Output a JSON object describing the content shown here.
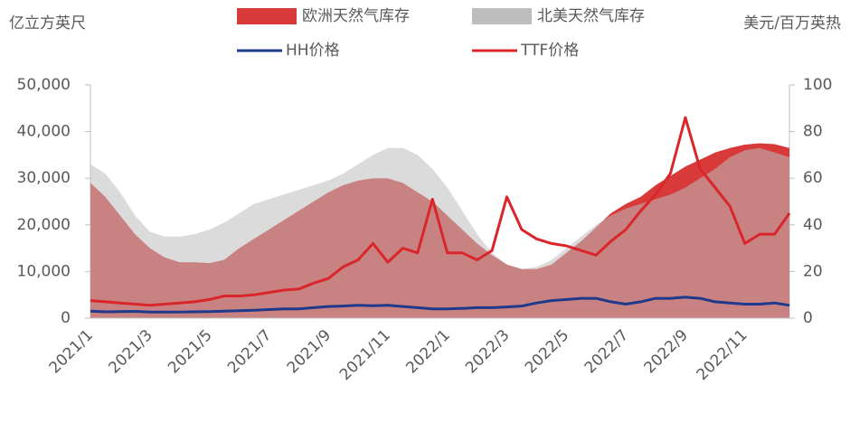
{
  "chart_data": {
    "type": "area-line",
    "y_label": "亿立方英尺",
    "y2_label": "美元/百万英热",
    "categories": [
      "2021/1",
      null,
      null,
      null,
      "2021/3",
      null,
      null,
      null,
      "2021/5",
      null,
      null,
      null,
      "2021/7",
      null,
      null,
      null,
      "2021/9",
      null,
      null,
      null,
      "2021/11",
      null,
      null,
      null,
      "2022/1",
      null,
      null,
      null,
      "2022/3",
      null,
      null,
      null,
      "2022/5",
      null,
      null,
      null,
      "2022/7",
      null,
      null,
      null,
      "2022/9",
      null,
      null,
      null,
      "2022/11",
      null,
      null,
      null
    ],
    "ylim": [
      0,
      50000
    ],
    "yticks": [
      0,
      {
        "value": 10000,
        "label": "10,000"
      },
      {
        "value": 20000,
        "label": "20,000"
      },
      {
        "value": 30000,
        "label": "30,000"
      },
      {
        "value": 40000,
        "label": "40,000"
      },
      {
        "value": 50000,
        "label": "50,000"
      }
    ],
    "y2lim": [
      0,
      100
    ],
    "y2ticks": [
      0,
      20,
      40,
      60,
      80,
      100
    ],
    "series": [
      {
        "name": "欧洲天然气库存",
        "type": "area",
        "color": "#d83a3a",
        "values": [
          29000,
          26000,
          22000,
          18000,
          15000,
          13000,
          12000,
          12000,
          11800,
          12500,
          15000,
          17000,
          19000,
          21000,
          23000,
          25000,
          27000,
          28500,
          29500,
          30000,
          30000,
          29000,
          27000,
          25000,
          22000,
          19000,
          16000,
          13500,
          11500,
          10500,
          10500,
          11500,
          14000,
          16500,
          19500,
          22500,
          24500,
          26000,
          28500,
          30500,
          32500,
          34000,
          35500,
          36500,
          37200,
          37500,
          37300,
          36500
        ]
      },
      {
        "name": "北美天然气库存",
        "type": "area",
        "color": "#bdbdbd",
        "values": [
          33000,
          31000,
          27000,
          22000,
          18500,
          17500,
          17500,
          18000,
          19000,
          20500,
          22500,
          24500,
          25500,
          26500,
          27500,
          28500,
          29500,
          31000,
          33000,
          35000,
          36500,
          36500,
          35000,
          32000,
          28000,
          23000,
          18000,
          14000,
          11500,
          10500,
          11000,
          12500,
          15000,
          17500,
          20000,
          22000,
          23500,
          24500,
          25500,
          26500,
          28000,
          30000,
          32000,
          34500,
          36000,
          36500,
          35500,
          34500
        ]
      },
      {
        "name": "HH价格",
        "type": "line",
        "axis": "y2",
        "color": "#1f3a8a",
        "values": [
          3,
          2.7,
          2.8,
          2.9,
          2.6,
          2.6,
          2.6,
          2.7,
          2.8,
          3,
          3.2,
          3.4,
          3.7,
          4,
          4,
          4.5,
          5,
          5.2,
          5.5,
          5.3,
          5.5,
          5,
          4.5,
          4,
          4,
          4.2,
          4.5,
          4.5,
          4.8,
          5.2,
          6.5,
          7.5,
          8,
          8.5,
          8.5,
          7,
          6,
          7,
          8.5,
          8.5,
          9,
          8.5,
          7,
          6.5,
          6,
          6,
          6.5,
          5.5
        ]
      },
      {
        "name": "TTF价格",
        "type": "line",
        "axis": "y2",
        "color": "#d9262a",
        "values": [
          7.5,
          7,
          6.5,
          6,
          5.5,
          6,
          6.5,
          7,
          8,
          9.5,
          9.5,
          10,
          11,
          12,
          12.5,
          15,
          17,
          22,
          25,
          32,
          24,
          30,
          28,
          51,
          28,
          28,
          25,
          29,
          52,
          38,
          34,
          32,
          31,
          29,
          27,
          33,
          38,
          46,
          53,
          62,
          86,
          64,
          56,
          48,
          32,
          36,
          36,
          45
        ]
      }
    ]
  }
}
